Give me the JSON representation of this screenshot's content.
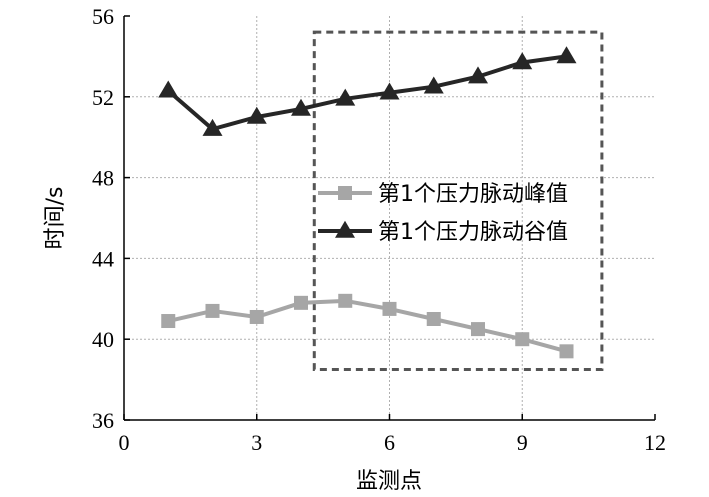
{
  "chart_data": {
    "type": "line",
    "xlabel": "监测点",
    "ylabel": "时间/s",
    "xlim": [
      0,
      12
    ],
    "ylim": [
      36,
      56
    ],
    "xticks": [
      0,
      3,
      6,
      9,
      12
    ],
    "yticks": [
      36,
      40,
      44,
      48,
      52,
      56
    ],
    "grid": true,
    "legend_position": "right-middle",
    "series": [
      {
        "name": "第1个压力脉动峰值",
        "marker": "square",
        "color": "#a6a6a6",
        "x": [
          1,
          2,
          3,
          4,
          5,
          6,
          7,
          8,
          9,
          10
        ],
        "y": [
          40.9,
          41.4,
          41.1,
          41.8,
          41.9,
          41.5,
          41.0,
          40.5,
          40.0,
          39.4
        ]
      },
      {
        "name": "第1个压力脉动谷值",
        "marker": "triangle",
        "color": "#262626",
        "x": [
          1,
          2,
          3,
          4,
          5,
          6,
          7,
          8,
          9,
          10
        ],
        "y": [
          52.3,
          50.4,
          51.0,
          51.4,
          51.9,
          52.2,
          52.5,
          53.0,
          53.7,
          54.0
        ]
      }
    ],
    "highlight_box": {
      "x": [
        4.3,
        10.8
      ],
      "y": [
        38.5,
        55.2
      ],
      "style": "dashed"
    }
  }
}
